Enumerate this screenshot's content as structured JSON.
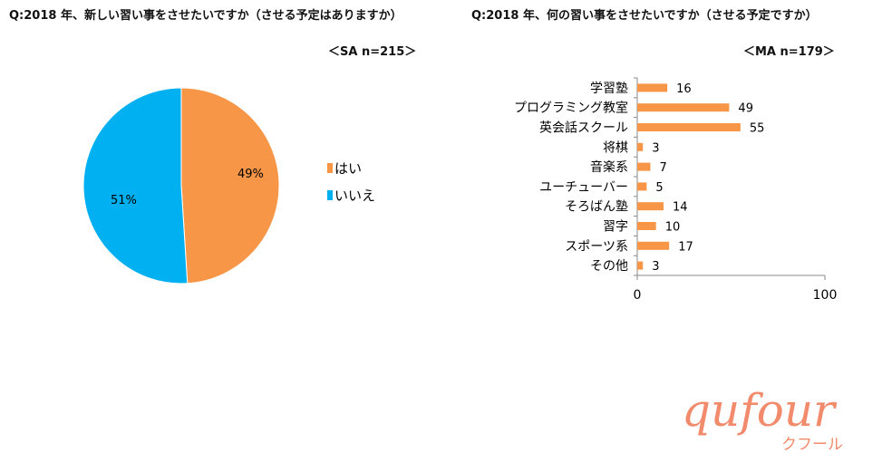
{
  "q1": {
    "title": "Q:2018 年、新しい習い事をさせたいですか（させる予定はありますか）",
    "sample": "＜SA n=215＞"
  },
  "q2": {
    "title": "Q:2018 年、何の習い事をさせたいですか（させる予定ですか）",
    "sample": "＜MA n=179＞"
  },
  "brand": {
    "logo_text": "qufour",
    "sub": "クフール"
  },
  "colors": {
    "orange": "#f79646",
    "blue": "#00b0f0"
  },
  "chart_data": [
    {
      "type": "pie",
      "slices": [
        {
          "label": "はい",
          "value": 49,
          "display": "49%",
          "color": "#f79646"
        },
        {
          "label": "いいえ",
          "value": 51,
          "display": "51%",
          "color": "#00b0f0"
        }
      ],
      "legend": "right"
    },
    {
      "type": "bar",
      "orientation": "horizontal",
      "categories": [
        "学習塾",
        "プログラミング教室",
        "英会話スクール",
        "将棋",
        "音楽系",
        "ユーチューバー",
        "そろばん塾",
        "習字",
        "スポーツ系",
        "その他"
      ],
      "values": [
        16,
        49,
        55,
        3,
        7,
        5,
        14,
        10,
        17,
        3
      ],
      "xlim": [
        0,
        100
      ],
      "xticks": [
        0,
        100
      ],
      "color": "#f79646"
    }
  ]
}
